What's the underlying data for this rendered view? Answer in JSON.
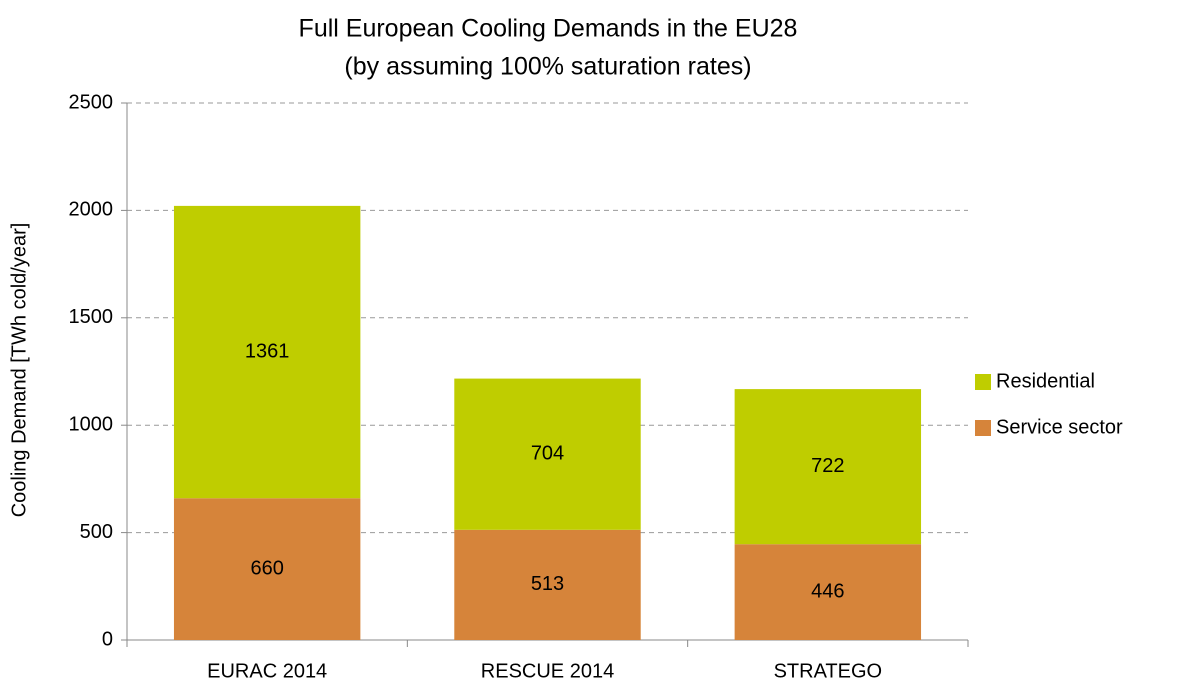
{
  "chart_data": {
    "type": "stacked_bar",
    "title": "Full European Cooling Demands in the EU28",
    "subtitle": "(by assuming 100% saturation rates)",
    "y_label": "Cooling Demand [TWh cold/year]",
    "categories": [
      "EURAC 2014",
      "RESCUE 2014",
      "STRATEGO"
    ],
    "series": [
      {
        "name": "Service sector",
        "color": "#d6843a",
        "values": [
          660,
          513,
          446
        ]
      },
      {
        "name": "Residential",
        "color": "#bfcd00",
        "values": [
          1361,
          704,
          722
        ]
      }
    ],
    "ylim": [
      0,
      2500
    ],
    "yticks": [
      0,
      500,
      1000,
      1500,
      2000,
      2500
    ],
    "grid": true,
    "legend": "right"
  }
}
